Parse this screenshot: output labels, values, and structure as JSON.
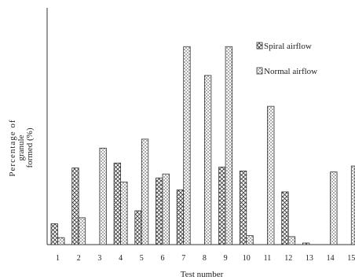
{
  "chart_data": {
    "type": "bar",
    "title": "",
    "xlabel": "Test number",
    "ylabel": "Percentage of granule formed (%)",
    "ylabel_lines": [
      "Percentage of",
      "granule",
      "formed (%)"
    ],
    "categories": [
      "1",
      "2",
      "3",
      "4",
      "5",
      "6",
      "7",
      "8",
      "9",
      "10",
      "11",
      "12",
      "13",
      "14",
      "15"
    ],
    "ylim": [
      0,
      100
    ],
    "grid": false,
    "legend_position": "top-right",
    "series": [
      {
        "name": "Spiral airflow",
        "pattern": "crosshatch",
        "values": [
          10.5,
          38.5,
          0,
          41,
          17,
          33.5,
          27.5,
          0,
          39,
          37,
          0,
          26.5,
          0.8,
          0,
          0
        ]
      },
      {
        "name": "Normal airflow",
        "pattern": "dotted",
        "values": [
          3.5,
          13.5,
          48.5,
          31.5,
          53,
          35.5,
          99.5,
          85,
          99.5,
          4.5,
          69.5,
          4,
          0,
          36.5,
          39.5
        ]
      }
    ]
  }
}
